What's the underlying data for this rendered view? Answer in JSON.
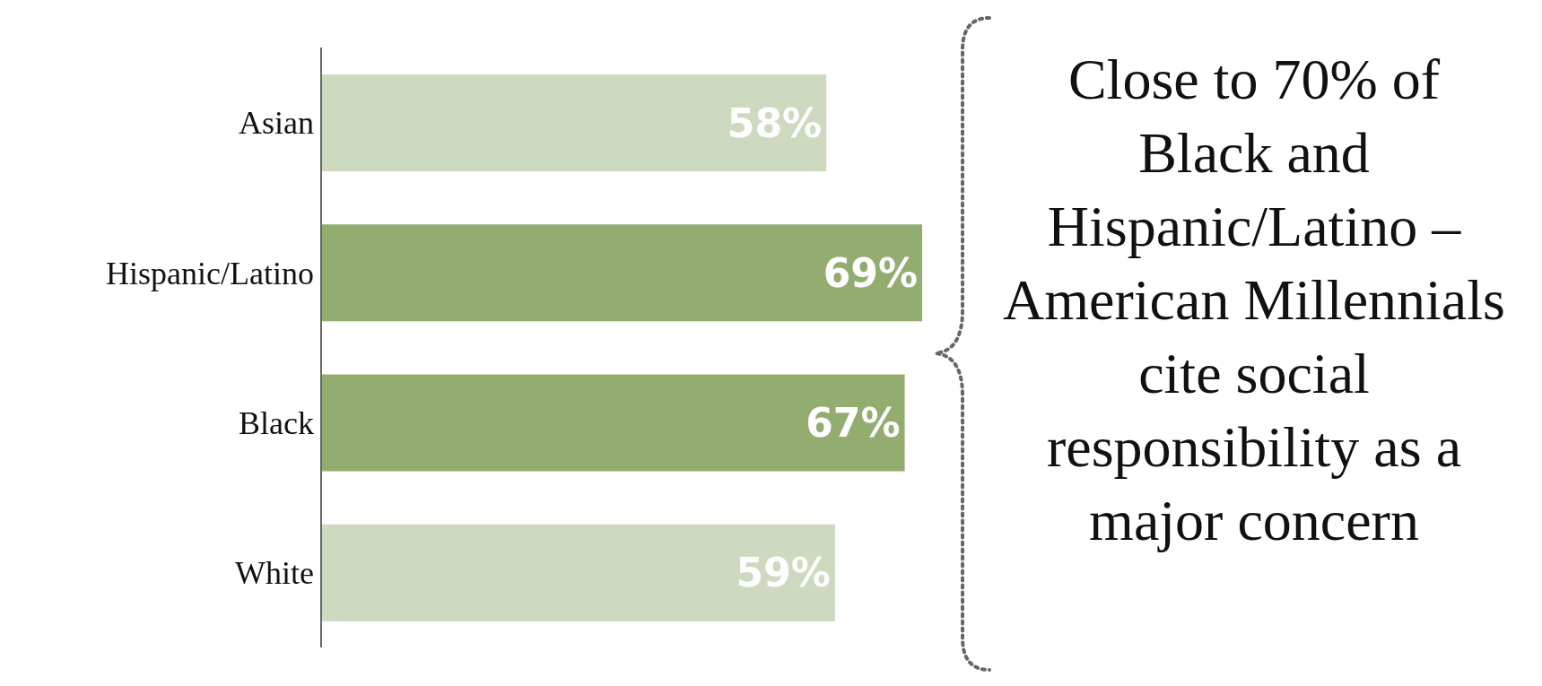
{
  "chart_data": {
    "type": "bar",
    "orientation": "horizontal",
    "categories": [
      "Asian",
      "Hispanic/Latino",
      "Black",
      "White"
    ],
    "values": [
      58,
      69,
      67,
      59
    ],
    "colors": [
      "#cddabf",
      "#93ad71",
      "#93ad71",
      "#cddabf"
    ],
    "value_labels": [
      "58%",
      "69%",
      "67%",
      "59%"
    ],
    "annotations": [
      "Close to 70% of Black and Hispanic/Latino –American Millennials cite social responsibility as a major concern"
    ]
  }
}
